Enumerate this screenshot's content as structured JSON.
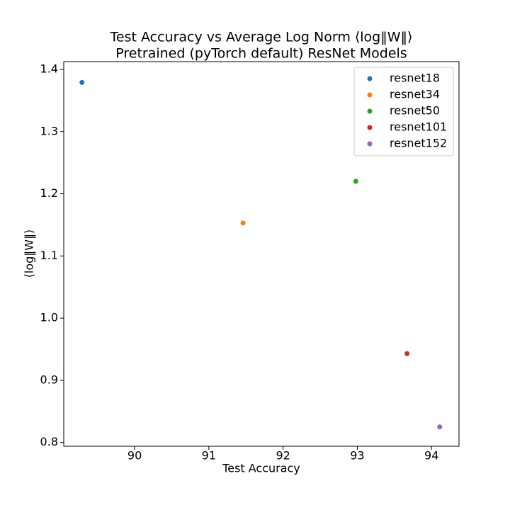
{
  "chart_data": {
    "type": "scatter",
    "title": "Test Accuracy vs Average Log Norm ⟨log‖W‖⟩",
    "subtitle": "Pretrained (pyTorch default) ResNet Models",
    "xlabel": "Test Accuracy",
    "ylabel": "⟨log‖W‖⟩",
    "xlim": [
      89.045,
      94.37
    ],
    "xticks": [
      90,
      91,
      92,
      93,
      94
    ],
    "ylim": [
      0.794,
      1.4125
    ],
    "yticks": [
      {
        "value": 0.8,
        "label": "0.8"
      },
      0.9,
      {
        "value": 1,
        "label": "1.0"
      },
      1.1,
      1.2,
      1.3,
      1.4
    ],
    "legend": "upper right",
    "series": [
      {
        "name": "resnet18",
        "color": "#1f77b4",
        "x": [
          89.29
        ],
        "values": [
          1.379
        ]
      },
      {
        "name": "resnet34",
        "color": "#ff7f0e",
        "x": [
          91.46
        ],
        "values": [
          1.153
        ]
      },
      {
        "name": "resnet50",
        "color": "#2ca02c",
        "x": [
          92.98
        ],
        "values": [
          1.22
        ]
      },
      {
        "name": "resnet101",
        "color": "#d62728",
        "x": [
          93.67
        ],
        "values": [
          0.943
        ]
      },
      {
        "name": "resnet152",
        "color": "#9467bd",
        "x": [
          94.11
        ],
        "values": [
          0.825
        ]
      }
    ]
  }
}
